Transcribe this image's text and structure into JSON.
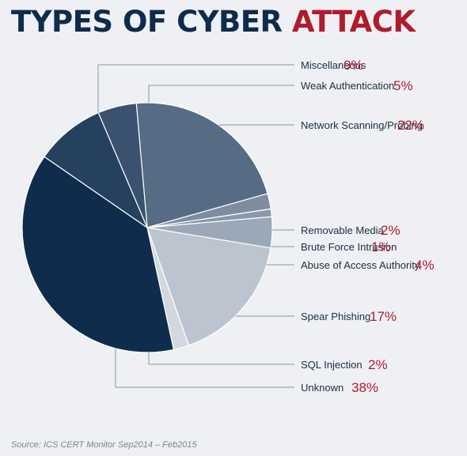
{
  "title": {
    "main": "TYPES OF CYBER",
    "accent": "ATTACK"
  },
  "source": "Source: ICS CERT Monitor Sep2014 – Feb2015",
  "colors": {
    "title": "#0f2b4c",
    "accent": "#b01c2e",
    "background": "#eef0f3",
    "leader": "#8a96a6"
  },
  "chart_data": {
    "type": "pie",
    "title": "TYPES OF CYBER ATTACK",
    "slices": [
      {
        "label": "Network Scanning/Probing",
        "value": 22,
        "display": "22%",
        "color": "#566b84"
      },
      {
        "label": "Removable Media",
        "value": 2,
        "display": "2%",
        "color": "#7d8c9f"
      },
      {
        "label": "Brute Force Intrusion",
        "value": 1,
        "display": "1%",
        "color": "#8999ab"
      },
      {
        "label": "Abuse of Access Authority",
        "value": 4,
        "display": "4%",
        "color": "#9aa8b7"
      },
      {
        "label": "Spear Phishing",
        "value": 17,
        "display": "17%",
        "color": "#bcc4cf"
      },
      {
        "label": "SQL Injection",
        "value": 2,
        "display": "2%",
        "color": "#d3d8df"
      },
      {
        "label": "Unknown",
        "value": 38,
        "display": "38%",
        "color": "#102c4d"
      },
      {
        "label": "Miscellaneous",
        "value": 9,
        "display": "9%",
        "color": "#26405f"
      },
      {
        "label": "Weak Authentication",
        "value": 5,
        "display": "5%",
        "color": "#3a526f"
      }
    ]
  }
}
